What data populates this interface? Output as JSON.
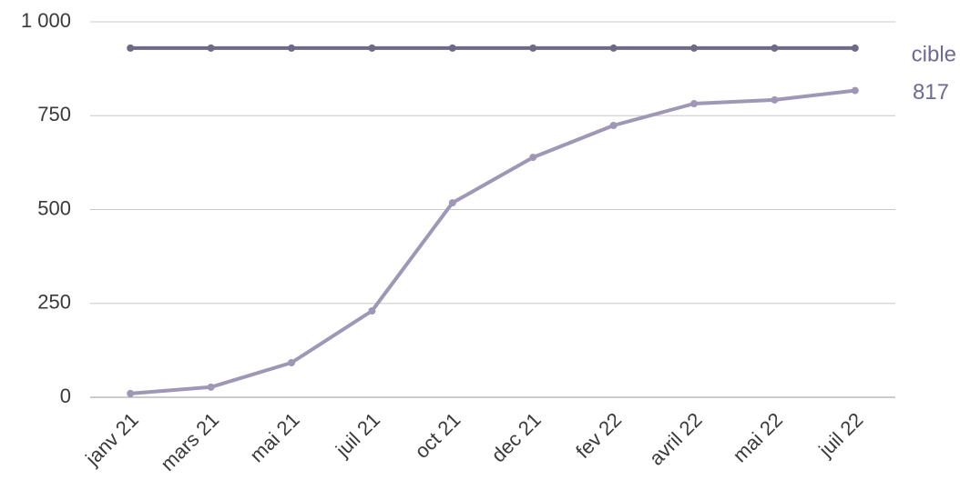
{
  "chart_data": {
    "type": "line",
    "categories": [
      "janv 21",
      "mars 21",
      "mai 21",
      "juil 21",
      "oct 21",
      "dec 21",
      "fev 22",
      "avril 22",
      "mai 22",
      "juil 22"
    ],
    "series": [
      {
        "name": "cible",
        "color": "#6e6a85",
        "values": [
          930,
          930,
          930,
          930,
          930,
          930,
          930,
          930,
          930,
          930
        ]
      },
      {
        "color": "#9e97b5",
        "values": [
          10,
          27,
          92,
          230,
          518,
          639,
          724,
          782,
          792,
          817
        ]
      }
    ],
    "ylim": [
      0,
      1000
    ],
    "yticks": [
      0,
      250,
      500,
      750,
      {
        "value": 1000,
        "label": "1 000"
      }
    ],
    "grid": true
  }
}
